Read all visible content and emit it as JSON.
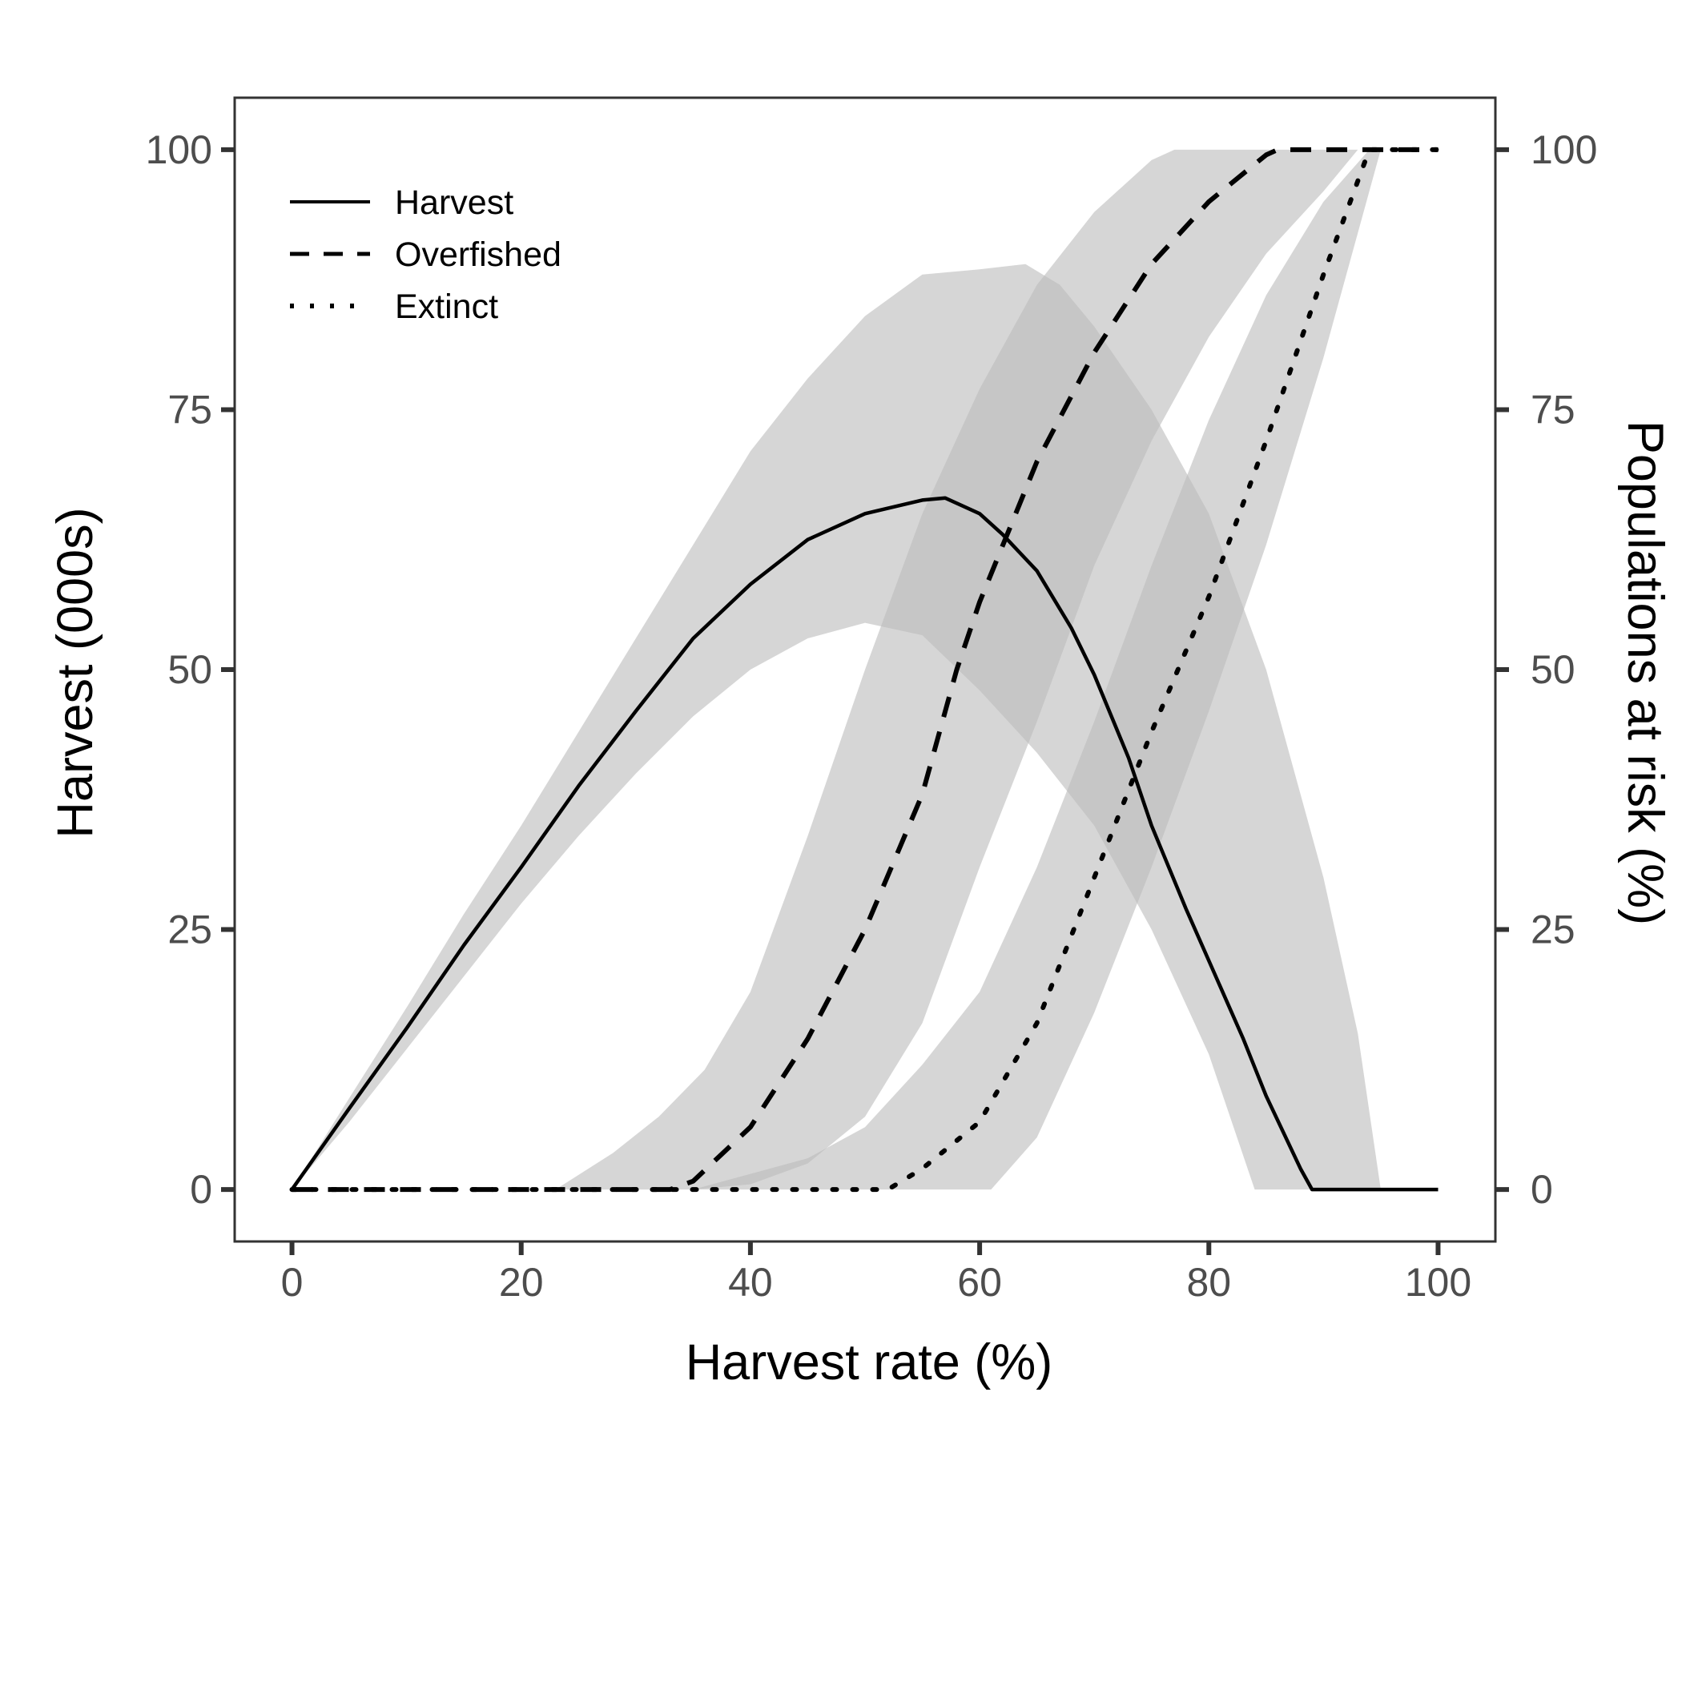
{
  "chart_data": {
    "type": "line",
    "xlabel": "Harvest rate (%)",
    "ylabel": "Harvest (000s)",
    "y2label": "Populations at risk (%)",
    "xlim": [
      -5,
      105
    ],
    "ylim": [
      -5,
      105
    ],
    "xticks": [
      "0",
      "20",
      "40",
      "60",
      "80",
      "100"
    ],
    "yticks": [
      "0",
      "25",
      "50",
      "75",
      "100"
    ],
    "y2ticks": [
      "0",
      "25",
      "50",
      "75",
      "100"
    ],
    "grid": false,
    "legend_position": "top-left",
    "band_color": "#bdbdbd",
    "line_color": "#000000",
    "series": [
      {
        "name": "Harvest",
        "style": "solid",
        "axis": "left",
        "points": [
          [
            0,
            0
          ],
          [
            5,
            7.8
          ],
          [
            10,
            15.5
          ],
          [
            15,
            23.5
          ],
          [
            20,
            31
          ],
          [
            25,
            38.8
          ],
          [
            30,
            46
          ],
          [
            35,
            53
          ],
          [
            40,
            58.2
          ],
          [
            45,
            62.5
          ],
          [
            50,
            65
          ],
          [
            55,
            66.3
          ],
          [
            57,
            66.5
          ],
          [
            60,
            65
          ],
          [
            62,
            63
          ],
          [
            65,
            59.5
          ],
          [
            68,
            54
          ],
          [
            70,
            49.5
          ],
          [
            73,
            41.5
          ],
          [
            75,
            35
          ],
          [
            78,
            27
          ],
          [
            80,
            22
          ],
          [
            83,
            14.5
          ],
          [
            85,
            9
          ],
          [
            88,
            2
          ],
          [
            89,
            0
          ],
          [
            100,
            0
          ]
        ],
        "band_lower": [
          [
            0,
            0
          ],
          [
            5,
            6.5
          ],
          [
            10,
            13.5
          ],
          [
            15,
            20.5
          ],
          [
            20,
            27.5
          ],
          [
            25,
            34
          ],
          [
            30,
            40
          ],
          [
            35,
            45.5
          ],
          [
            40,
            50
          ],
          [
            45,
            53
          ],
          [
            50,
            54.5
          ],
          [
            55,
            53.3
          ],
          [
            60,
            48
          ],
          [
            65,
            42
          ],
          [
            70,
            35
          ],
          [
            75,
            25
          ],
          [
            80,
            13
          ],
          [
            84,
            0
          ]
        ],
        "band_upper": [
          [
            0,
            0
          ],
          [
            5,
            8.8
          ],
          [
            10,
            17.5
          ],
          [
            15,
            26.5
          ],
          [
            20,
            35
          ],
          [
            25,
            44
          ],
          [
            30,
            53
          ],
          [
            35,
            62
          ],
          [
            40,
            71
          ],
          [
            45,
            78
          ],
          [
            50,
            84
          ],
          [
            55,
            88
          ],
          [
            60,
            88.5
          ],
          [
            64,
            89
          ],
          [
            67,
            87
          ],
          [
            70,
            83
          ],
          [
            75,
            75
          ],
          [
            80,
            65
          ],
          [
            85,
            50
          ],
          [
            90,
            30
          ],
          [
            93,
            15
          ],
          [
            95,
            0
          ]
        ]
      },
      {
        "name": "Overfished",
        "style": "dashed",
        "axis": "right",
        "points": [
          [
            0,
            0
          ],
          [
            33,
            0
          ],
          [
            35,
            0.8
          ],
          [
            40,
            6
          ],
          [
            45,
            14.5
          ],
          [
            50,
            25
          ],
          [
            55,
            38
          ],
          [
            58,
            50
          ],
          [
            60,
            56.5
          ],
          [
            65,
            70
          ],
          [
            70,
            80.5
          ],
          [
            75,
            89
          ],
          [
            80,
            95
          ],
          [
            85,
            99.5
          ],
          [
            86,
            100
          ],
          [
            100,
            100
          ]
        ],
        "band_lower": [
          [
            23,
            0
          ],
          [
            30,
            0
          ],
          [
            35,
            0
          ],
          [
            40,
            0.5
          ],
          [
            45,
            2.5
          ],
          [
            50,
            7
          ],
          [
            55,
            16
          ],
          [
            60,
            31
          ],
          [
            65,
            45
          ],
          [
            70,
            60
          ],
          [
            75,
            72
          ],
          [
            80,
            82
          ],
          [
            85,
            90
          ],
          [
            90,
            96
          ],
          [
            93,
            100
          ]
        ],
        "band_upper": [
          [
            23,
            0
          ],
          [
            28,
            3.5
          ],
          [
            32,
            7
          ],
          [
            36,
            11.5
          ],
          [
            40,
            19
          ],
          [
            45,
            34
          ],
          [
            50,
            50
          ],
          [
            55,
            65
          ],
          [
            60,
            77
          ],
          [
            65,
            87
          ],
          [
            70,
            94
          ],
          [
            75,
            99
          ],
          [
            77,
            100
          ],
          [
            93,
            100
          ]
        ]
      },
      {
        "name": "Extinct",
        "style": "dotted",
        "axis": "right",
        "points": [
          [
            0,
            0
          ],
          [
            52,
            0
          ],
          [
            55,
            2
          ],
          [
            60,
            6.5
          ],
          [
            65,
            16
          ],
          [
            70,
            30
          ],
          [
            75,
            44
          ],
          [
            80,
            57
          ],
          [
            85,
            72
          ],
          [
            90,
            88
          ],
          [
            93,
            97
          ],
          [
            94,
            100
          ],
          [
            100,
            100
          ]
        ],
        "band_lower": [
          [
            35,
            0
          ],
          [
            45,
            0
          ],
          [
            55,
            0
          ],
          [
            61,
            0
          ],
          [
            65,
            5
          ],
          [
            70,
            17
          ],
          [
            75,
            31
          ],
          [
            80,
            46
          ],
          [
            85,
            62
          ],
          [
            90,
            80
          ],
          [
            95,
            100
          ]
        ],
        "band_upper": [
          [
            35,
            0
          ],
          [
            40,
            1.5
          ],
          [
            45,
            3
          ],
          [
            50,
            6
          ],
          [
            55,
            12
          ],
          [
            60,
            19
          ],
          [
            65,
            31
          ],
          [
            70,
            45
          ],
          [
            75,
            60
          ],
          [
            80,
            74
          ],
          [
            85,
            86
          ],
          [
            90,
            95
          ],
          [
            94,
            100
          ]
        ]
      }
    ]
  }
}
